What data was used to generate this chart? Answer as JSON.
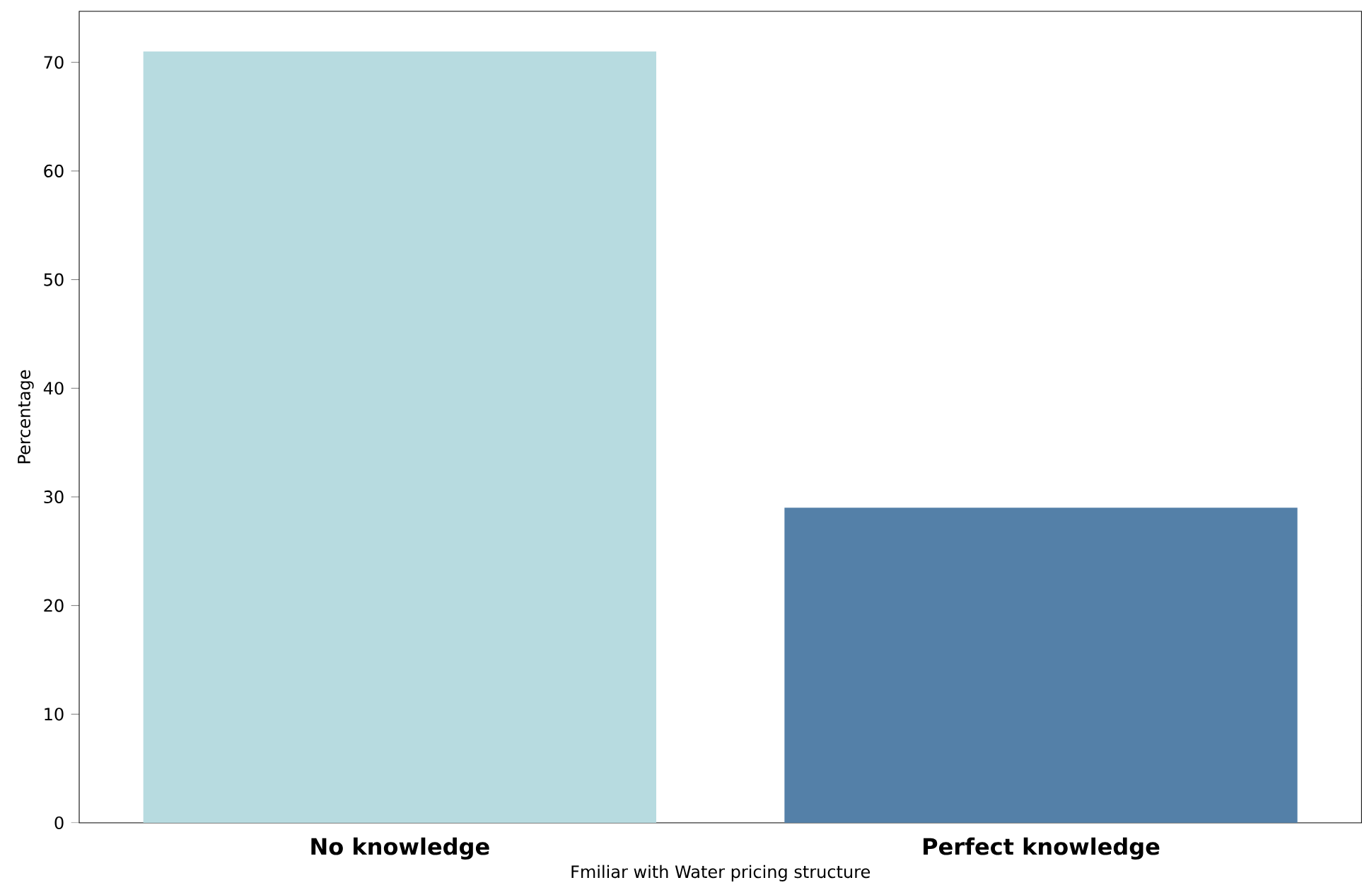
{
  "chart_data": {
    "type": "bar",
    "xlabel": "Fmiliar with Water pricing structure",
    "ylabel": "Percentage",
    "categories": [
      "No knowledge",
      "Perfect knowledge"
    ],
    "values": [
      71,
      29
    ],
    "colors": [
      "#b7dbe0",
      "#5480a8"
    ],
    "ylim": [
      0,
      74.7
    ],
    "yticks": [
      0,
      10,
      20,
      30,
      40,
      50,
      60,
      70
    ],
    "grid": false
  }
}
